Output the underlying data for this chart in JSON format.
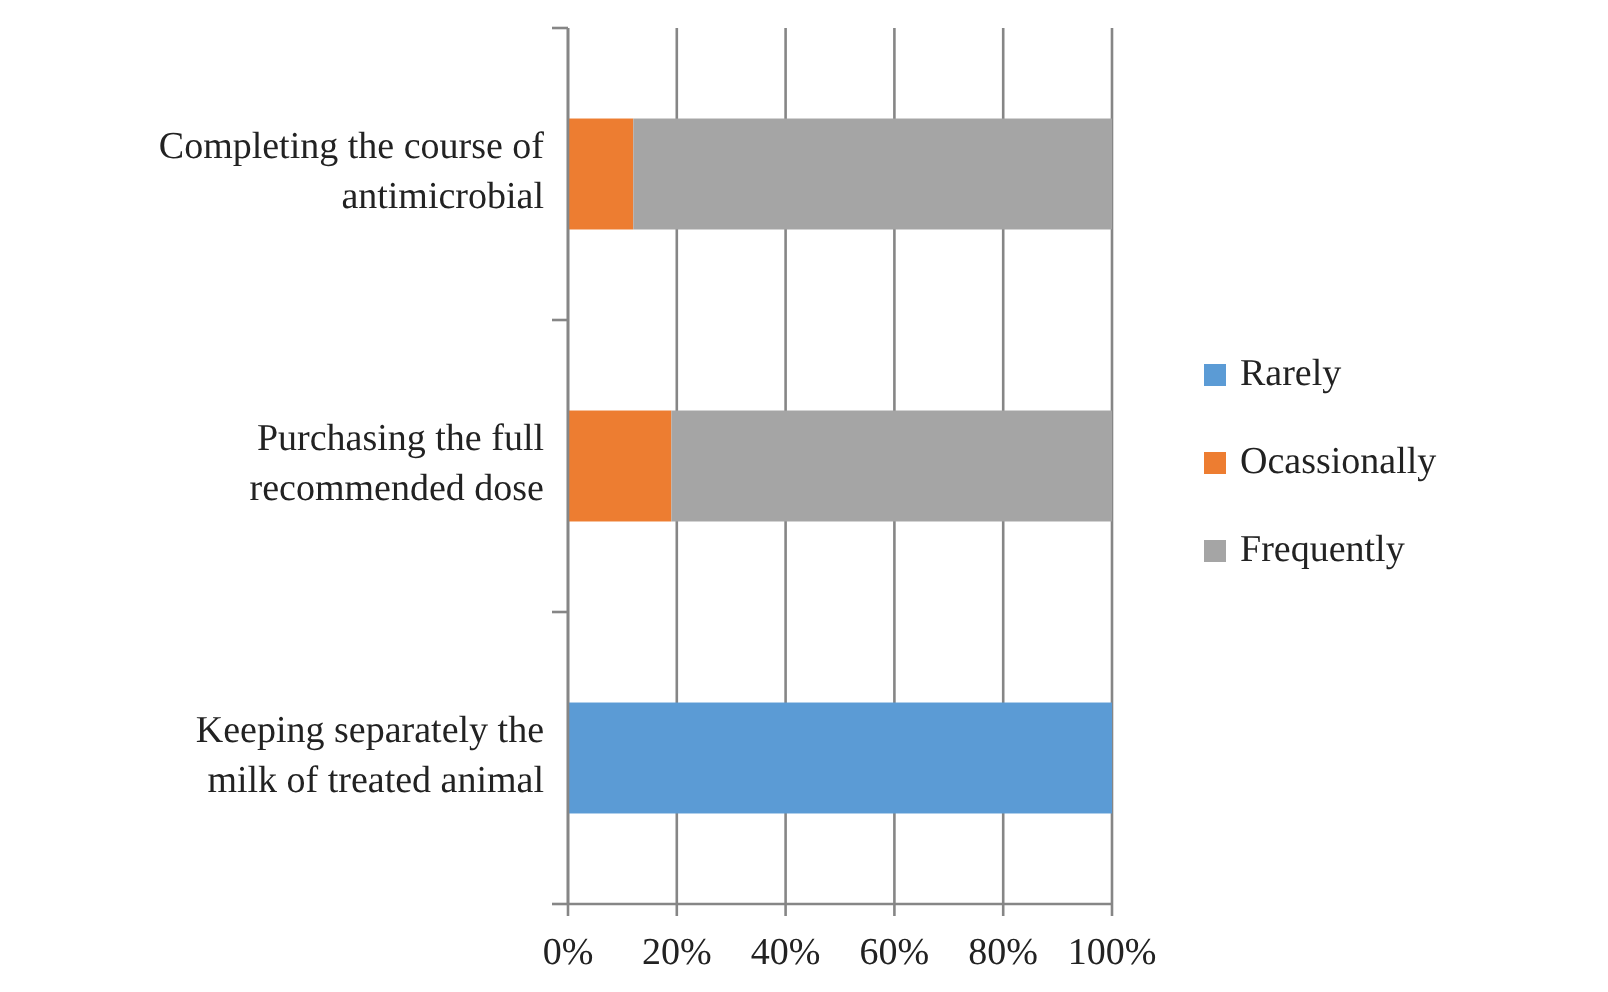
{
  "chart_data": {
    "type": "bar",
    "orientation": "horizontal",
    "stacked": true,
    "categories": [
      "Completing the course of antimicrobial",
      "Purchasing the full recommended dose",
      "Keeping separately the milk of treated animal"
    ],
    "series": [
      {
        "name": "Rarely",
        "color": "#5b9bd5",
        "values": [
          0,
          0,
          100
        ]
      },
      {
        "name": "Ocassionally",
        "color": "#ed7d31",
        "values": [
          12,
          19,
          0
        ]
      },
      {
        "name": "Frequently",
        "color": "#a5a5a5",
        "values": [
          88,
          81,
          0
        ]
      }
    ],
    "xlim": [
      0,
      100
    ],
    "xticks": [
      {
        "value": 0,
        "label": "0%"
      },
      {
        "value": 20,
        "label": "20%"
      },
      {
        "value": 40,
        "label": "40%"
      },
      {
        "value": 60,
        "label": "60%"
      },
      {
        "value": 80,
        "label": "80%"
      },
      {
        "value": 100,
        "label": "100%"
      }
    ],
    "grid": "x",
    "legend": "right"
  }
}
